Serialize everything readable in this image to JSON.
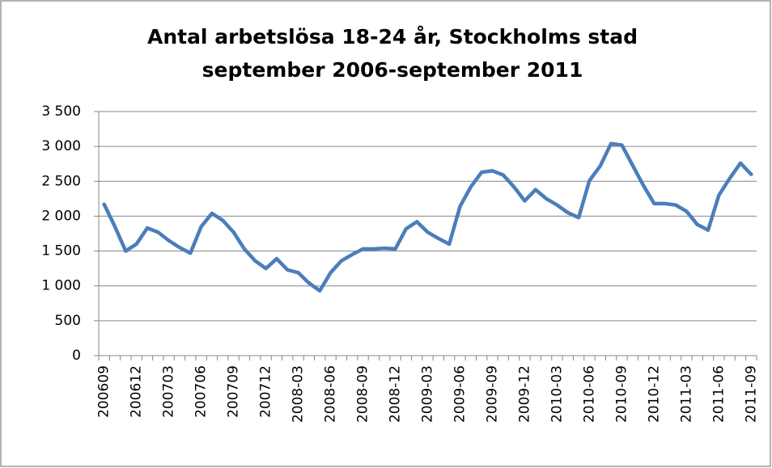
{
  "chart_data": {
    "type": "line",
    "title": "Antal arbetslösa 18-24 år, Stockholms stad",
    "subtitle": "september 2006-september 2011",
    "categories": [
      "200609",
      null,
      null,
      "200612",
      null,
      null,
      "200703",
      null,
      null,
      "200706",
      null,
      null,
      "200709",
      null,
      null,
      "200712",
      null,
      null,
      "2008-03",
      null,
      null,
      "2008-06",
      null,
      null,
      "2008-09",
      null,
      null,
      "2008-12",
      null,
      null,
      "2009-03",
      null,
      null,
      "2009-06",
      null,
      null,
      "2009-09",
      null,
      null,
      "2009-12",
      null,
      null,
      "2010-03",
      null,
      null,
      "2010-06",
      null,
      null,
      "2010-09",
      null,
      null,
      "2010-12",
      null,
      null,
      "2011-03",
      null,
      null,
      "2011-06",
      null,
      null,
      "2011-09"
    ],
    "values": [
      2170,
      1850,
      1500,
      1600,
      1830,
      1770,
      1650,
      1550,
      1470,
      1850,
      2040,
      1940,
      1770,
      1530,
      1360,
      1250,
      1390,
      1230,
      1190,
      1040,
      930,
      1190,
      1360,
      1450,
      1530,
      1530,
      1540,
      1530,
      1820,
      1920,
      1770,
      1680,
      1600,
      2140,
      2420,
      2630,
      2650,
      2590,
      2420,
      2220,
      2380,
      2250,
      2160,
      2050,
      1980,
      2510,
      2720,
      3040,
      3020,
      2730,
      2440,
      2180,
      2180,
      2160,
      2070,
      1880,
      1800,
      2300,
      2540,
      2760,
      2600
    ],
    "color": "#4a7ebb",
    "ylim": [
      0,
      3500
    ],
    "yticks": [
      0,
      500,
      {
        "value": 1000,
        "label": "1 000"
      },
      {
        "value": 1500,
        "label": "1 500"
      },
      {
        "value": 2000,
        "label": "2 000"
      },
      {
        "value": 2500,
        "label": "2 500"
      },
      {
        "value": 3000,
        "label": "3 000"
      },
      {
        "value": 3500,
        "label": "3 500"
      }
    ],
    "grid": true
  }
}
